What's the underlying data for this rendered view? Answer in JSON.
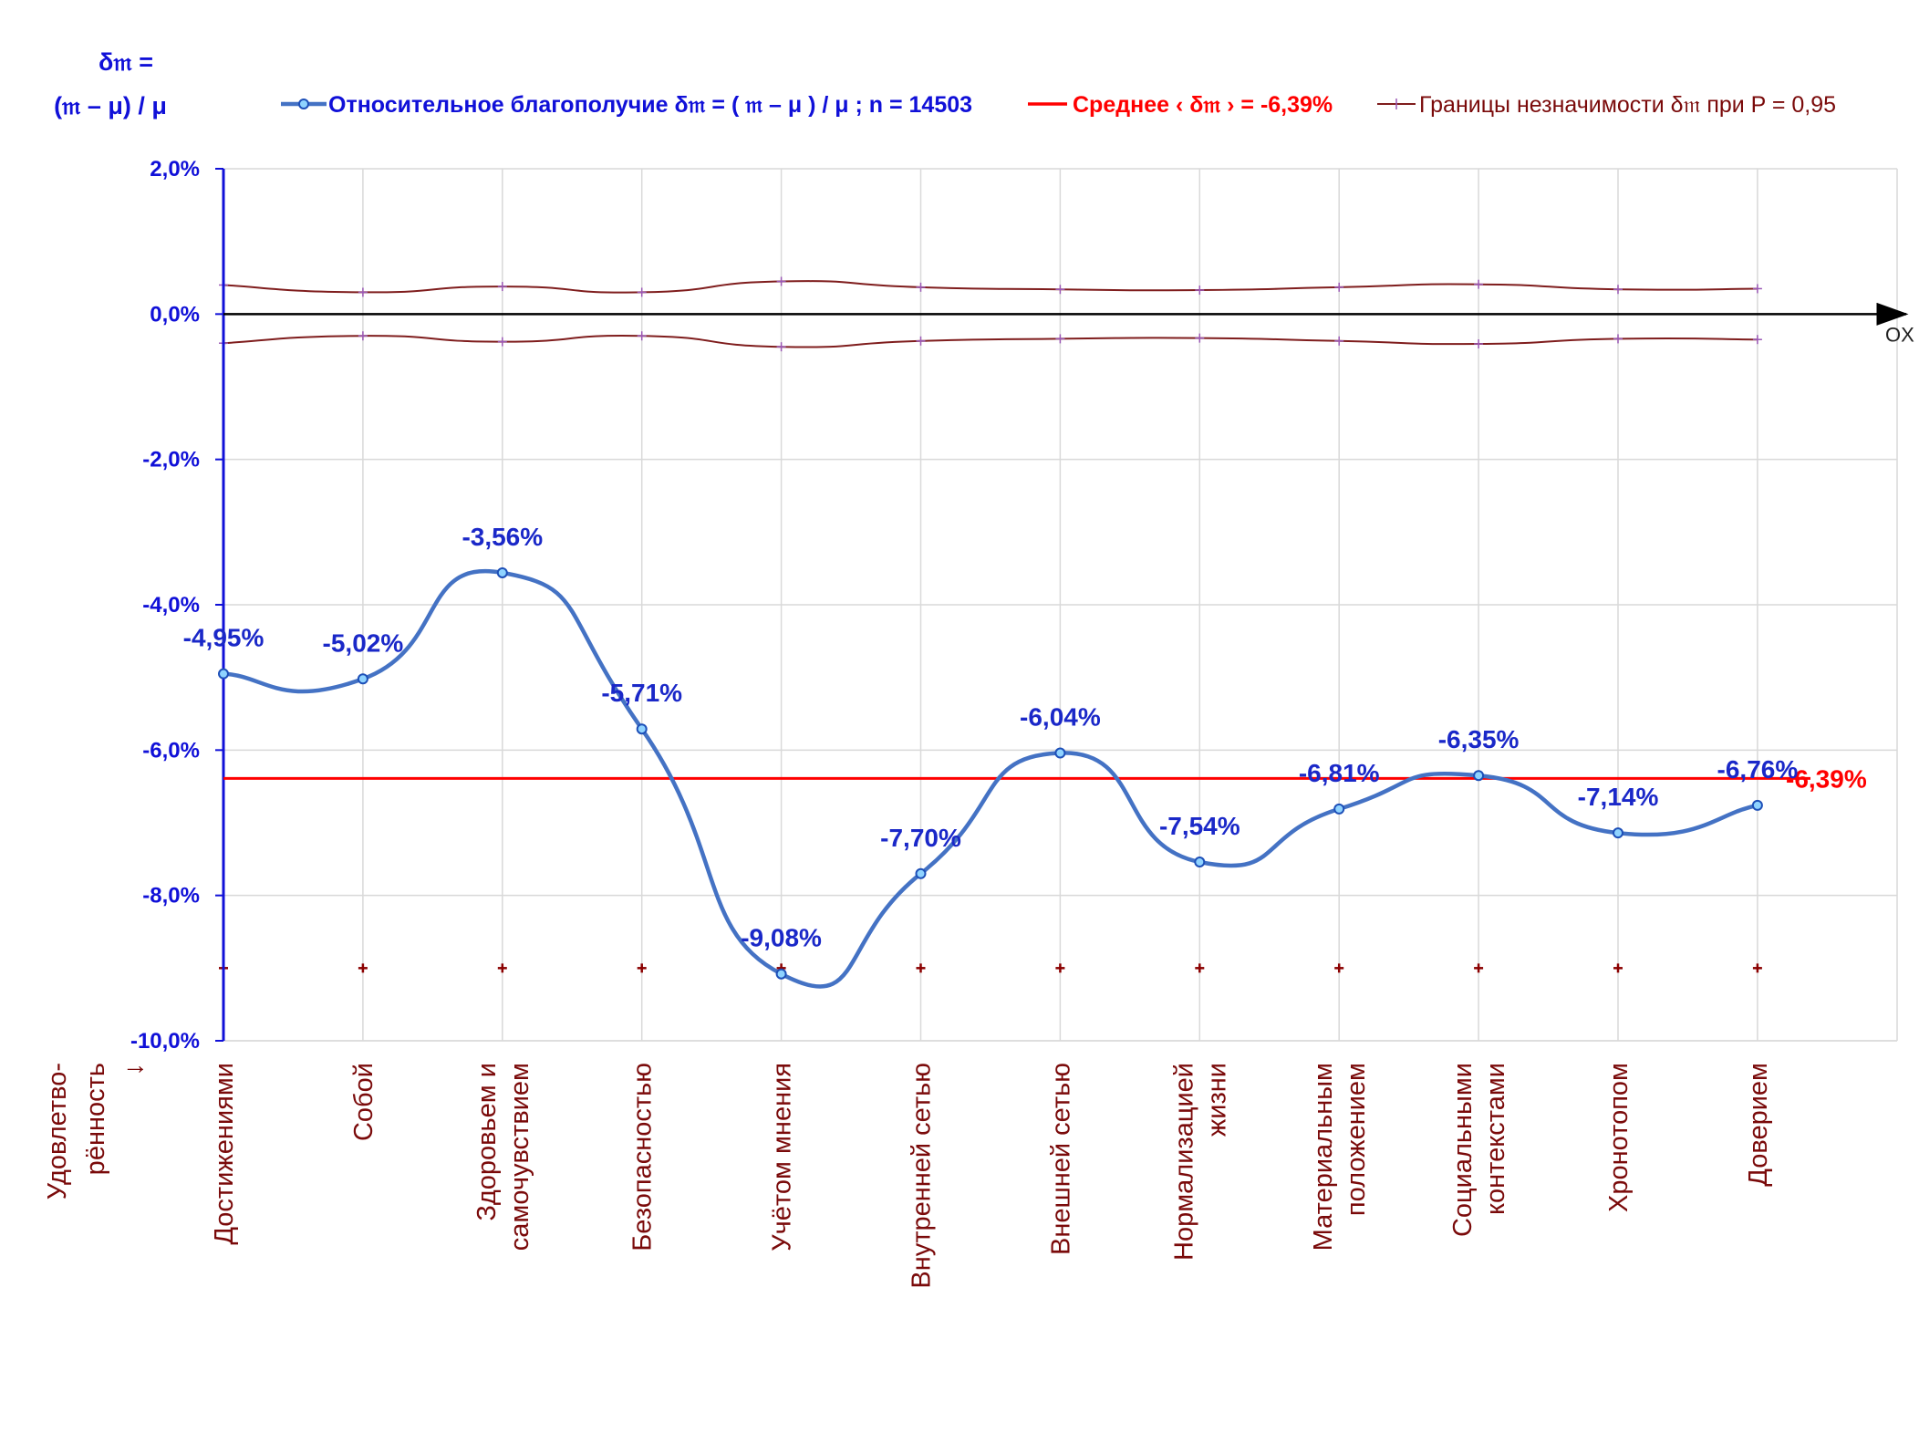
{
  "chart_data": {
    "type": "line",
    "y_axis_title": [
      "δ𝔪 =",
      "(𝔪 – μ) / μ"
    ],
    "x_axis_end_label": "OX",
    "categories": [
      [
        "Достижениями"
      ],
      [
        "Собой"
      ],
      [
        "Здоровьем и",
        "самочувствием"
      ],
      [
        "Безопасностью"
      ],
      [
        "Учётом мнения"
      ],
      [
        "Внутренней сетью"
      ],
      [
        "Внешней сетью"
      ],
      [
        "Нормализацией",
        "жизни"
      ],
      [
        "Материальным",
        "положением"
      ],
      [
        "Социальными",
        "контекстами"
      ],
      [
        "Хронотопом"
      ],
      [
        "Доверием"
      ]
    ],
    "row_label": [
      "Удовлетво-",
      "рённость",
      "↓"
    ],
    "y_ticks": [
      "2,0%",
      "0,0%",
      "-2,0%",
      "-4,0%",
      "-6,0%",
      "-8,0%",
      "-10,0%"
    ],
    "ylim": [
      -10,
      2
    ],
    "series": [
      {
        "name": "Относительное благополучие δ𝔪 = ( 𝔪 – μ ) / μ ; n = 14503",
        "values": [
          -4.95,
          -5.02,
          -3.56,
          -5.71,
          -9.08,
          -7.7,
          -6.04,
          -7.54,
          -6.81,
          -6.35,
          -7.14,
          -6.76
        ],
        "labels": [
          "-4,95%",
          "-5,02%",
          "-3,56%",
          "-5,71%",
          "-9,08%",
          "-7,70%",
          "-6,04%",
          "-7,54%",
          "-6,81%",
          "-6,35%",
          "-7,14%",
          "-6,76%"
        ],
        "color": "#4472c4"
      },
      {
        "name": "Среднее ‹ δ𝔪 › = -6,39%",
        "value": -6.39,
        "label": "-6,39%",
        "color": "#ff0000"
      },
      {
        "name": "Границы незначимости δ𝔪 при P = 0,95",
        "upper": [
          0.4,
          0.3,
          0.38,
          0.3,
          0.45,
          0.37,
          0.34,
          0.33,
          0.37,
          0.41,
          0.34,
          0.35
        ],
        "lower": [
          -0.4,
          -0.3,
          -0.38,
          -0.3,
          -0.45,
          -0.37,
          -0.34,
          -0.33,
          -0.37,
          -0.41,
          -0.34,
          -0.35
        ],
        "marker_row": -9.0,
        "color": "#7f1d1d"
      }
    ],
    "grid": true,
    "legend_position": "top"
  }
}
